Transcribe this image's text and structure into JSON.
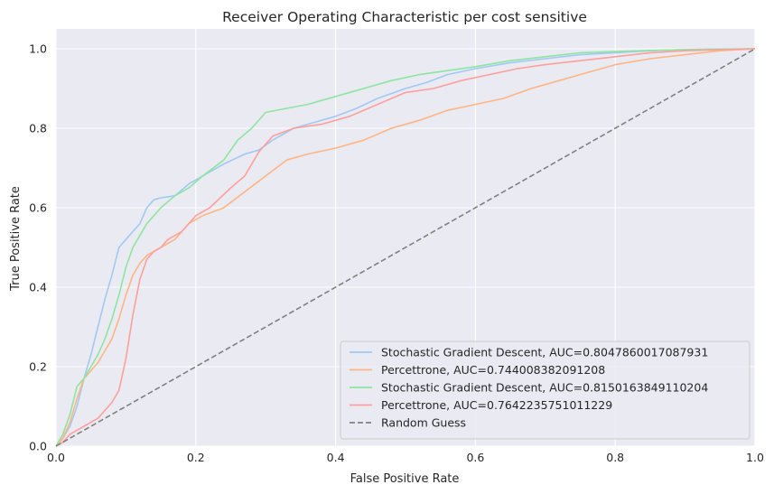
{
  "chart_data": {
    "type": "line",
    "title": "Receiver Operating Characteristic per cost sensitive",
    "xlabel": "False Positive Rate",
    "ylabel": "True Positive Rate",
    "xlim": [
      0.0,
      1.0
    ],
    "ylim": [
      0.0,
      1.05
    ],
    "xticks": [
      "0.0",
      "0.2",
      "0.4",
      "0.6",
      "0.8",
      "1.0"
    ],
    "yticks": [
      "0.0",
      "0.2",
      "0.4",
      "0.6",
      "0.8",
      "1.0"
    ],
    "grid": true,
    "legend_position": "bottom-right",
    "colors": {
      "background": "#eaeaf2",
      "grid": "#ffffff",
      "text": "#262626"
    },
    "series": [
      {
        "name": "Stochastic Gradient Descent, AUC=0.8047860017087931",
        "color": "#a1c9f4",
        "style": "solid",
        "points": [
          [
            0,
            0
          ],
          [
            0.01,
            0.02
          ],
          [
            0.02,
            0.05
          ],
          [
            0.03,
            0.1
          ],
          [
            0.04,
            0.17
          ],
          [
            0.05,
            0.23
          ],
          [
            0.06,
            0.3
          ],
          [
            0.07,
            0.37
          ],
          [
            0.08,
            0.43
          ],
          [
            0.09,
            0.5
          ],
          [
            0.1,
            0.52
          ],
          [
            0.11,
            0.54
          ],
          [
            0.12,
            0.56
          ],
          [
            0.13,
            0.6
          ],
          [
            0.14,
            0.62
          ],
          [
            0.15,
            0.625
          ],
          [
            0.17,
            0.63
          ],
          [
            0.19,
            0.66
          ],
          [
            0.21,
            0.68
          ],
          [
            0.24,
            0.71
          ],
          [
            0.27,
            0.735
          ],
          [
            0.29,
            0.745
          ],
          [
            0.31,
            0.77
          ],
          [
            0.34,
            0.8
          ],
          [
            0.37,
            0.815
          ],
          [
            0.4,
            0.83
          ],
          [
            0.43,
            0.85
          ],
          [
            0.46,
            0.875
          ],
          [
            0.5,
            0.9
          ],
          [
            0.53,
            0.915
          ],
          [
            0.56,
            0.935
          ],
          [
            0.6,
            0.95
          ],
          [
            0.65,
            0.965
          ],
          [
            0.7,
            0.975
          ],
          [
            0.75,
            0.985
          ],
          [
            0.8,
            0.99
          ],
          [
            0.85,
            0.995
          ],
          [
            0.9,
            0.998
          ],
          [
            1,
            1
          ]
        ]
      },
      {
        "name": "Percettrone, AUC=0.744008382091208",
        "color": "#ffb482",
        "style": "solid",
        "points": [
          [
            0,
            0
          ],
          [
            0.01,
            0.02
          ],
          [
            0.02,
            0.06
          ],
          [
            0.03,
            0.12
          ],
          [
            0.04,
            0.17
          ],
          [
            0.05,
            0.19
          ],
          [
            0.06,
            0.21
          ],
          [
            0.07,
            0.24
          ],
          [
            0.08,
            0.27
          ],
          [
            0.09,
            0.32
          ],
          [
            0.1,
            0.38
          ],
          [
            0.11,
            0.43
          ],
          [
            0.12,
            0.46
          ],
          [
            0.13,
            0.48
          ],
          [
            0.14,
            0.49
          ],
          [
            0.15,
            0.5
          ],
          [
            0.17,
            0.52
          ],
          [
            0.19,
            0.56
          ],
          [
            0.21,
            0.58
          ],
          [
            0.24,
            0.6
          ],
          [
            0.27,
            0.64
          ],
          [
            0.3,
            0.68
          ],
          [
            0.33,
            0.72
          ],
          [
            0.36,
            0.735
          ],
          [
            0.4,
            0.75
          ],
          [
            0.44,
            0.77
          ],
          [
            0.48,
            0.8
          ],
          [
            0.52,
            0.82
          ],
          [
            0.56,
            0.845
          ],
          [
            0.6,
            0.86
          ],
          [
            0.64,
            0.875
          ],
          [
            0.68,
            0.9
          ],
          [
            0.72,
            0.92
          ],
          [
            0.76,
            0.94
          ],
          [
            0.8,
            0.96
          ],
          [
            0.85,
            0.975
          ],
          [
            0.9,
            0.985
          ],
          [
            0.95,
            0.995
          ],
          [
            1,
            1
          ]
        ]
      },
      {
        "name": "Stochastic Gradient Descent, AUC=0.8150163849110204",
        "color": "#8de5a1",
        "style": "solid",
        "points": [
          [
            0,
            0
          ],
          [
            0.01,
            0.03
          ],
          [
            0.02,
            0.08
          ],
          [
            0.03,
            0.15
          ],
          [
            0.04,
            0.17
          ],
          [
            0.05,
            0.2
          ],
          [
            0.06,
            0.23
          ],
          [
            0.07,
            0.27
          ],
          [
            0.08,
            0.32
          ],
          [
            0.09,
            0.38
          ],
          [
            0.1,
            0.45
          ],
          [
            0.11,
            0.5
          ],
          [
            0.12,
            0.53
          ],
          [
            0.13,
            0.56
          ],
          [
            0.14,
            0.58
          ],
          [
            0.15,
            0.6
          ],
          [
            0.17,
            0.63
          ],
          [
            0.19,
            0.65
          ],
          [
            0.21,
            0.68
          ],
          [
            0.24,
            0.72
          ],
          [
            0.26,
            0.77
          ],
          [
            0.28,
            0.8
          ],
          [
            0.3,
            0.84
          ],
          [
            0.33,
            0.85
          ],
          [
            0.36,
            0.86
          ],
          [
            0.4,
            0.88
          ],
          [
            0.44,
            0.9
          ],
          [
            0.48,
            0.92
          ],
          [
            0.52,
            0.935
          ],
          [
            0.56,
            0.945
          ],
          [
            0.6,
            0.955
          ],
          [
            0.65,
            0.97
          ],
          [
            0.7,
            0.98
          ],
          [
            0.75,
            0.99
          ],
          [
            0.8,
            0.993
          ],
          [
            0.85,
            0.996
          ],
          [
            0.9,
            0.998
          ],
          [
            1,
            1
          ]
        ]
      },
      {
        "name": "Percettrone, AUC=0.7642235751011229",
        "color": "#ff9f9b",
        "style": "solid",
        "points": [
          [
            0,
            0
          ],
          [
            0.01,
            0.01
          ],
          [
            0.02,
            0.03
          ],
          [
            0.03,
            0.04
          ],
          [
            0.04,
            0.05
          ],
          [
            0.05,
            0.06
          ],
          [
            0.06,
            0.07
          ],
          [
            0.07,
            0.09
          ],
          [
            0.08,
            0.11
          ],
          [
            0.09,
            0.14
          ],
          [
            0.1,
            0.22
          ],
          [
            0.11,
            0.33
          ],
          [
            0.12,
            0.42
          ],
          [
            0.13,
            0.47
          ],
          [
            0.14,
            0.49
          ],
          [
            0.15,
            0.5
          ],
          [
            0.16,
            0.52
          ],
          [
            0.18,
            0.54
          ],
          [
            0.2,
            0.58
          ],
          [
            0.22,
            0.6
          ],
          [
            0.25,
            0.65
          ],
          [
            0.27,
            0.68
          ],
          [
            0.29,
            0.74
          ],
          [
            0.31,
            0.78
          ],
          [
            0.34,
            0.8
          ],
          [
            0.38,
            0.81
          ],
          [
            0.42,
            0.83
          ],
          [
            0.46,
            0.86
          ],
          [
            0.5,
            0.89
          ],
          [
            0.54,
            0.9
          ],
          [
            0.58,
            0.92
          ],
          [
            0.62,
            0.935
          ],
          [
            0.66,
            0.95
          ],
          [
            0.7,
            0.96
          ],
          [
            0.75,
            0.97
          ],
          [
            0.8,
            0.98
          ],
          [
            0.85,
            0.99
          ],
          [
            0.9,
            0.995
          ],
          [
            1,
            1
          ]
        ]
      },
      {
        "name": "Random Guess",
        "color": "#808080",
        "style": "dashed",
        "points": [
          [
            0,
            0
          ],
          [
            1,
            1
          ]
        ]
      }
    ]
  }
}
